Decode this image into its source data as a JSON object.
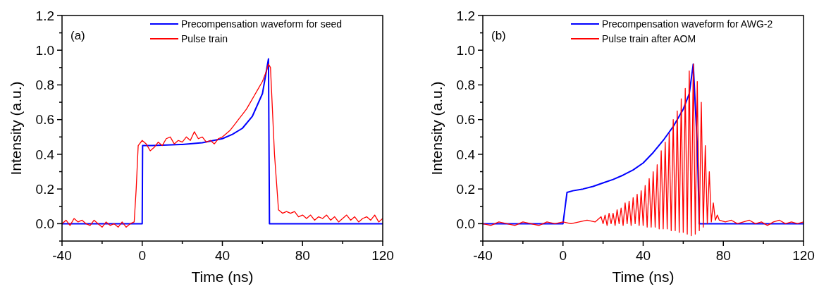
{
  "chart_data": [
    {
      "type": "line",
      "annotations": [
        "(a)"
      ],
      "xlabel": "Time (ns)",
      "ylabel": "Intensity (a.u.)",
      "xlim": [
        -40,
        120
      ],
      "ylim": [
        -0.1,
        1.2
      ],
      "xticks": [
        -40,
        {
          "value": -20,
          "label": null
        },
        0,
        {
          "value": 20,
          "label": null
        },
        40,
        {
          "value": 60,
          "label": null
        },
        80,
        {
          "value": 100,
          "label": null
        },
        120
      ],
      "yticks": [
        {
          "value": -0.1,
          "label": null
        },
        {
          "value": 0,
          "label": "0.0"
        },
        {
          "value": 0.1,
          "label": null
        },
        {
          "value": 0.2,
          "label": "0.2"
        },
        {
          "value": 0.3,
          "label": null
        },
        {
          "value": 0.4,
          "label": "0.4"
        },
        {
          "value": 0.5,
          "label": null
        },
        {
          "value": 0.6,
          "label": "0.6"
        },
        {
          "value": 0.7,
          "label": null
        },
        {
          "value": 0.8,
          "label": "0.8"
        },
        {
          "value": 0.9,
          "label": null
        },
        {
          "value": 1,
          "label": "1.0"
        },
        {
          "value": 1.1,
          "label": null
        },
        {
          "value": 1.2,
          "label": "1.2"
        }
      ],
      "legend": "top right",
      "grid": false,
      "series": [
        {
          "name": "Precompensation waveform for seed",
          "color": "#0000ff",
          "x": [
            -40,
            0,
            0.2,
            5,
            10,
            20,
            30,
            40,
            45,
            50,
            55,
            60,
            63,
            63.5,
            120
          ],
          "values": [
            0,
            0,
            0.45,
            0.45,
            0.452,
            0.457,
            0.467,
            0.49,
            0.515,
            0.55,
            0.62,
            0.75,
            0.95,
            0,
            0
          ]
        },
        {
          "name": "Pulse train",
          "color": "#ff0000",
          "x": [
            -40,
            -38,
            -36,
            -34,
            -32,
            -30,
            -28,
            -26,
            -24,
            -22,
            -20,
            -18,
            -16,
            -14,
            -12,
            -10,
            -8,
            -6,
            -4,
            -3,
            -2,
            0,
            2,
            4,
            6,
            8,
            10,
            12,
            14,
            16,
            18,
            20,
            22,
            24,
            26,
            28,
            30,
            32,
            34,
            36,
            38,
            40,
            42,
            44,
            46,
            48,
            50,
            52,
            54,
            56,
            58,
            60,
            62,
            63,
            64,
            66,
            68,
            70,
            72,
            74,
            76,
            78,
            80,
            82,
            84,
            86,
            88,
            90,
            92,
            94,
            96,
            98,
            100,
            102,
            104,
            106,
            108,
            110,
            112,
            114,
            116,
            118,
            120
          ],
          "values": [
            0,
            0.02,
            -0.01,
            0.03,
            0.01,
            0.02,
            0,
            -0.01,
            0.02,
            0,
            -0.02,
            0.01,
            -0.01,
            0,
            -0.02,
            0.01,
            -0.02,
            0,
            0.01,
            0.2,
            0.45,
            0.48,
            0.46,
            0.42,
            0.44,
            0.47,
            0.45,
            0.49,
            0.5,
            0.46,
            0.48,
            0.47,
            0.5,
            0.48,
            0.53,
            0.49,
            0.5,
            0.47,
            0.48,
            0.46,
            0.49,
            0.5,
            0.52,
            0.54,
            0.57,
            0.6,
            0.63,
            0.66,
            0.7,
            0.74,
            0.78,
            0.82,
            0.88,
            0.92,
            0.9,
            0.4,
            0.08,
            0.06,
            0.07,
            0.06,
            0.07,
            0.04,
            0.05,
            0.03,
            0.05,
            0.02,
            0.04,
            0.03,
            0.05,
            0.02,
            0.04,
            0.01,
            0.03,
            0.05,
            0.02,
            0.04,
            0.01,
            0.03,
            0.04,
            0.02,
            0.05,
            0.01,
            0.03
          ]
        }
      ]
    },
    {
      "type": "line",
      "annotations": [
        "(b)"
      ],
      "xlabel": "Time (ns)",
      "ylabel": "Intensity (a.u.)",
      "xlim": [
        -40,
        120
      ],
      "ylim": [
        -0.1,
        1.2
      ],
      "xticks": [
        -40,
        {
          "value": -20,
          "label": null
        },
        0,
        {
          "value": 20,
          "label": null
        },
        40,
        {
          "value": 60,
          "label": null
        },
        80,
        {
          "value": 100,
          "label": null
        },
        120
      ],
      "yticks": [
        {
          "value": -0.1,
          "label": null
        },
        {
          "value": 0,
          "label": "0.0"
        },
        {
          "value": 0.1,
          "label": null
        },
        {
          "value": 0.2,
          "label": "0.2"
        },
        {
          "value": 0.3,
          "label": null
        },
        {
          "value": 0.4,
          "label": "0.4"
        },
        {
          "value": 0.5,
          "label": null
        },
        {
          "value": 0.6,
          "label": "0.6"
        },
        {
          "value": 0.7,
          "label": null
        },
        {
          "value": 0.8,
          "label": "0.8"
        },
        {
          "value": 0.9,
          "label": null
        },
        {
          "value": 1,
          "label": "1.0"
        },
        {
          "value": 1.1,
          "label": null
        },
        {
          "value": 1.2,
          "label": "1.2"
        }
      ],
      "legend": "top right",
      "grid": false,
      "series": [
        {
          "name": "Precompensation waveform for AWG-2",
          "color": "#0000ff",
          "x": [
            -40,
            0,
            2,
            5,
            10,
            15,
            20,
            25,
            30,
            35,
            40,
            45,
            50,
            55,
            60,
            63,
            65,
            67,
            68,
            120
          ],
          "values": [
            0,
            0,
            0.18,
            0.19,
            0.2,
            0.215,
            0.235,
            0.255,
            0.28,
            0.31,
            0.35,
            0.41,
            0.48,
            0.56,
            0.66,
            0.75,
            0.92,
            0.45,
            0,
            0
          ]
        },
        {
          "name": "Pulse train after AOM",
          "color": "#ff0000",
          "x": [
            -40,
            -36,
            -32,
            -28,
            -24,
            -20,
            -16,
            -12,
            -8,
            -4,
            0,
            4,
            8,
            12,
            16,
            18,
            19,
            20,
            21,
            22,
            23,
            24,
            25,
            26,
            27,
            28,
            29,
            30,
            31,
            32,
            33,
            34,
            35,
            36,
            37,
            38,
            39,
            40,
            41,
            42,
            43,
            44,
            45,
            46,
            47,
            48,
            49,
            50,
            51,
            52,
            53,
            54,
            55,
            56,
            57,
            58,
            59,
            60,
            61,
            62,
            63,
            64,
            65,
            66,
            67,
            68,
            69,
            70,
            71,
            72,
            73,
            74,
            75,
            76,
            77,
            78,
            81,
            84,
            87,
            90,
            93,
            96,
            99,
            102,
            105,
            108,
            111,
            114,
            117,
            120
          ],
          "values": [
            0,
            -0.01,
            0.01,
            0,
            -0.01,
            0.01,
            0,
            -0.01,
            0.01,
            0,
            0.01,
            0,
            0.01,
            0.02,
            0.01,
            0.03,
            0.04,
            0,
            0.05,
            -0.01,
            0.06,
            0,
            0.06,
            -0.01,
            0.08,
            0,
            0.09,
            -0.01,
            0.12,
            0,
            0.13,
            -0.01,
            0.15,
            0,
            0.17,
            -0.01,
            0.19,
            -0.01,
            0.22,
            -0.02,
            0.26,
            -0.02,
            0.3,
            -0.02,
            0.34,
            -0.03,
            0.42,
            -0.03,
            0.47,
            -0.03,
            0.52,
            -0.04,
            0.6,
            -0.04,
            0.65,
            -0.05,
            0.72,
            -0.05,
            0.78,
            -0.06,
            0.88,
            -0.07,
            0.92,
            -0.06,
            0.82,
            -0.04,
            0.7,
            -0.02,
            0.45,
            0,
            0.3,
            0.01,
            0.12,
            0.02,
            0.05,
            0.02,
            0.01,
            0.02,
            0,
            0.01,
            0.02,
            0,
            0.01,
            -0.01,
            0.01,
            0.02,
            0,
            0.01,
            0,
            0.01
          ]
        }
      ]
    }
  ]
}
